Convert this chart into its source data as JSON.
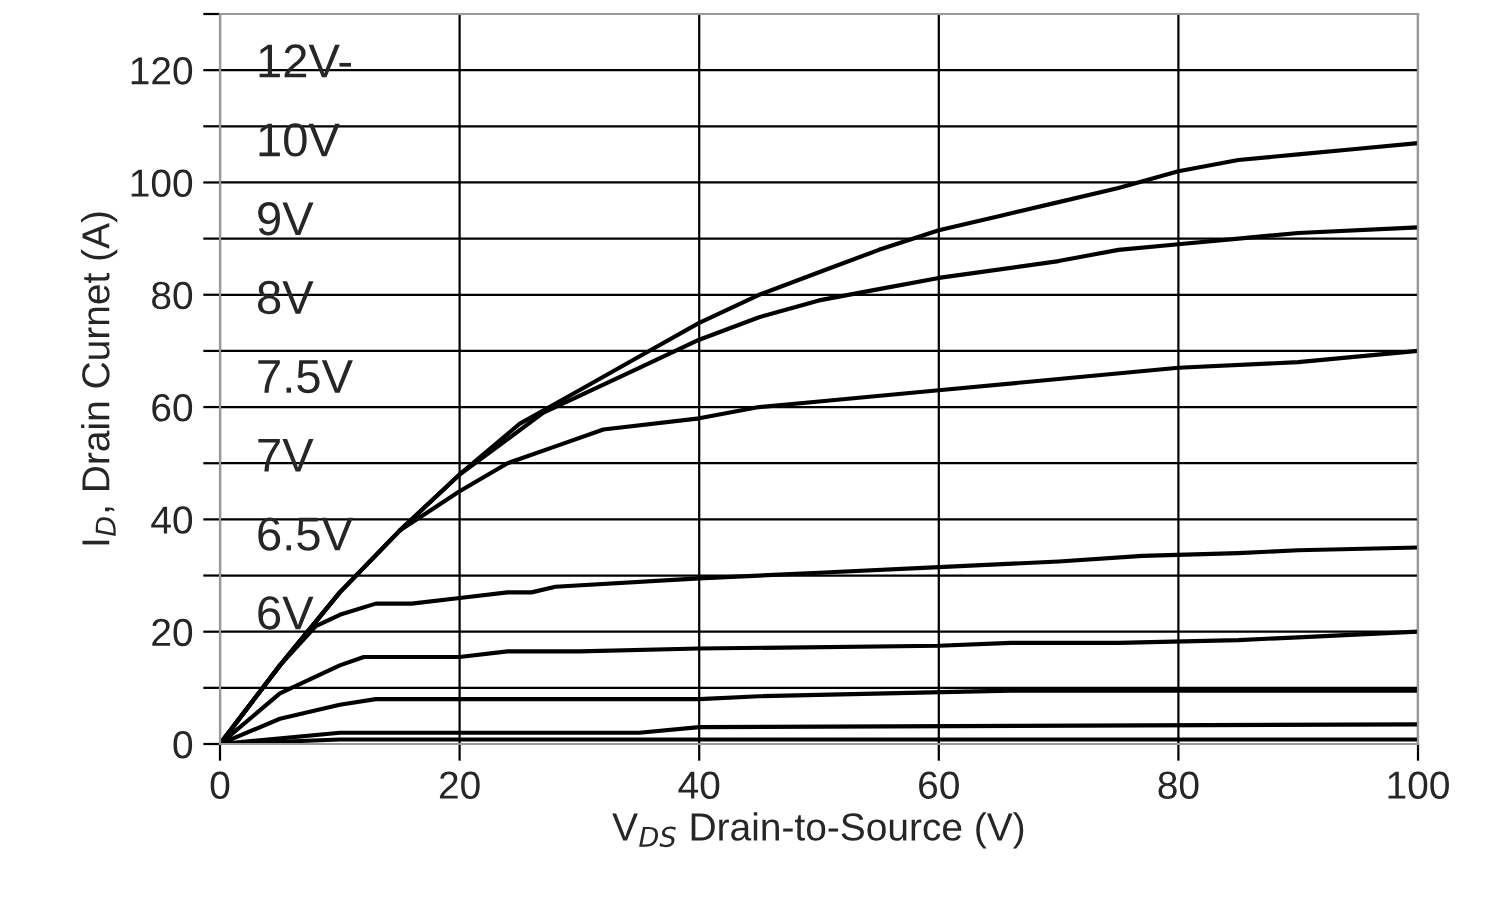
{
  "chart_data": {
    "type": "line",
    "xlabel": "V$_{DS}$ Drain-to-Source (V)",
    "ylabel": "I$_{D}$, Drain Curnet (A)",
    "xlim": [
      0,
      100
    ],
    "xticks": [
      0,
      20,
      40,
      60,
      80,
      100
    ],
    "ylim": [
      0,
      130
    ],
    "yticks": [
      0,
      {
        "value": 10,
        "label": null
      },
      20,
      {
        "value": 30,
        "label": null
      },
      40,
      {
        "value": 50,
        "label": null
      },
      60,
      {
        "value": 70,
        "label": null
      },
      80,
      {
        "value": 90,
        "label": null
      },
      100,
      {
        "value": 110,
        "label": null
      },
      120,
      {
        "value": 130,
        "label": null
      }
    ],
    "grid": true,
    "marker": "none",
    "line_style": "solid",
    "annotations": [
      "12V-",
      "10V",
      "9V",
      "8V",
      "7.5V",
      "7V",
      "6.5V",
      "6V"
    ],
    "series": [
      {
        "color": "#000000",
        "x": [
          0,
          5,
          10,
          15,
          20,
          25,
          30,
          35,
          40,
          45,
          50,
          55,
          60,
          65,
          70,
          75,
          80,
          85,
          90,
          95,
          100
        ],
        "values": [
          0,
          14,
          27,
          38,
          48,
          57,
          63,
          69,
          75,
          80,
          84,
          88,
          91.5,
          94,
          96.5,
          99,
          102,
          104,
          105,
          106,
          107
        ]
      },
      {
        "color": "#000000",
        "x": [
          0,
          5,
          10,
          15,
          20,
          27,
          30,
          35,
          40,
          45,
          50,
          55,
          60,
          70,
          75,
          80,
          85,
          90,
          100
        ],
        "values": [
          0,
          14,
          27,
          38,
          48,
          59,
          62,
          67,
          72,
          76,
          79,
          81,
          83,
          86,
          88,
          89,
          90,
          91,
          92
        ]
      },
      {
        "color": "#000000",
        "x": [
          0,
          5,
          10,
          15,
          20,
          24,
          28,
          32,
          40,
          45,
          50,
          60,
          70,
          80,
          90,
          100
        ],
        "values": [
          0,
          14,
          27,
          38,
          45,
          50,
          53,
          56,
          58,
          60,
          61,
          63,
          65,
          67,
          68,
          70
        ]
      },
      {
        "color": "#000000",
        "x": [
          0,
          5,
          8,
          10,
          13,
          16,
          20,
          24,
          26,
          28,
          40,
          50,
          60,
          70,
          77,
          85,
          90,
          100
        ],
        "values": [
          0,
          14,
          21,
          23,
          25,
          25,
          26,
          27,
          27,
          28,
          29.5,
          30.5,
          31.5,
          32.5,
          33.5,
          34,
          34.5,
          35
        ]
      },
      {
        "color": "#000000",
        "x": [
          0,
          5,
          10,
          12,
          20,
          24,
          30,
          40,
          60,
          66,
          75,
          85,
          90,
          100
        ],
        "values": [
          0,
          9,
          14,
          15.5,
          15.5,
          16.5,
          16.5,
          17,
          17.5,
          18,
          18,
          18.5,
          19,
          20
        ]
      },
      {
        "color": "#000000",
        "x": [
          0,
          5,
          10,
          13,
          35,
          40,
          45,
          66,
          100
        ],
        "values": [
          0,
          4.5,
          7,
          8,
          8,
          8,
          8.5,
          9.5,
          9.5
        ]
      },
      {
        "color": "#000000",
        "x": [
          0,
          10,
          35,
          40,
          100
        ],
        "values": [
          0,
          2,
          2,
          3,
          3.5
        ]
      },
      {
        "color": "#000000",
        "x": [
          0,
          10,
          100
        ],
        "values": [
          0,
          0.8,
          0.8
        ]
      }
    ]
  }
}
